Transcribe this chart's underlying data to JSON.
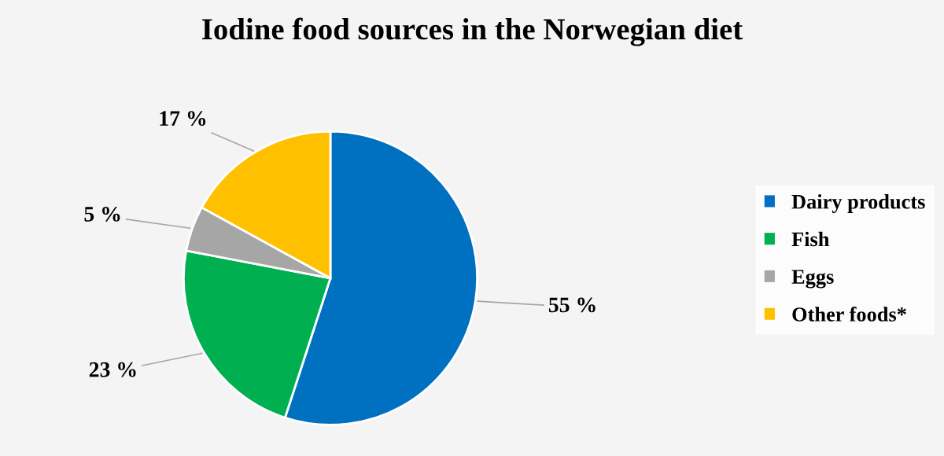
{
  "chart_data": {
    "type": "pie",
    "title": "Iodine food sources in the Norwegian diet",
    "categories": [
      "Dairy products",
      "Fish",
      "Eggs",
      "Other foods*"
    ],
    "values": [
      55,
      23,
      5,
      17
    ],
    "value_labels": [
      "55 %",
      "23 %",
      "5 %",
      "17 %"
    ],
    "colors": [
      "#0070c0",
      "#00b050",
      "#a6a6a6",
      "#ffc000"
    ],
    "legend": "right"
  }
}
